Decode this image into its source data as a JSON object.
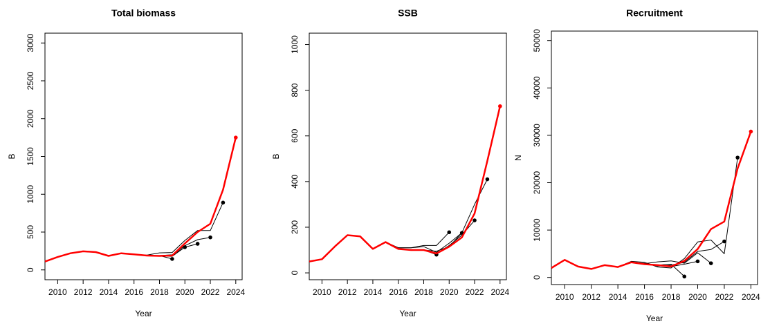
{
  "chart_data": [
    {
      "type": "line",
      "title": "Total biomass",
      "x_label": "Year",
      "y_label": "B",
      "x": [
        2009,
        2010,
        2011,
        2012,
        2013,
        2014,
        2015,
        2016,
        2017,
        2018,
        2019,
        2020,
        2021,
        2022,
        2023,
        2024
      ],
      "xlim": [
        2009,
        2024.5
      ],
      "xticks": [
        2010,
        2012,
        2014,
        2016,
        2018,
        2020,
        2022,
        2024
      ],
      "ylim": [
        -130,
        3130
      ],
      "yticks": [
        0,
        500,
        1000,
        1500,
        2000,
        2500,
        3000
      ],
      "series": [
        {
          "color": "#000000",
          "values": [
            110,
            170,
            220,
            245,
            235,
            185,
            220,
            205,
            190,
            190,
            145,
            null,
            null,
            null,
            null,
            null
          ]
        },
        {
          "color": "#000000",
          "values": [
            110,
            170,
            220,
            245,
            235,
            185,
            220,
            205,
            190,
            185,
            180,
            300,
            null,
            null,
            null,
            null
          ]
        },
        {
          "color": "#000000",
          "values": [
            110,
            170,
            220,
            245,
            235,
            185,
            220,
            205,
            190,
            185,
            195,
            300,
            345,
            null,
            null,
            null
          ]
        },
        {
          "color": "#000000",
          "values": [
            110,
            170,
            220,
            245,
            235,
            185,
            220,
            205,
            190,
            190,
            200,
            320,
            400,
            430,
            null,
            null
          ]
        },
        {
          "color": "#000000",
          "values": [
            110,
            170,
            220,
            245,
            235,
            185,
            220,
            205,
            195,
            225,
            230,
            390,
            520,
            520,
            890,
            null
          ]
        },
        {
          "color": "#ff0000",
          "values": [
            110,
            170,
            220,
            245,
            235,
            185,
            220,
            205,
            190,
            185,
            190,
            350,
            500,
            610,
            1060,
            1750
          ]
        }
      ]
    },
    {
      "type": "line",
      "title": "SSB",
      "x_label": "Year",
      "y_label": "B",
      "x": [
        2009,
        2010,
        2011,
        2012,
        2013,
        2014,
        2015,
        2016,
        2017,
        2018,
        2019,
        2020,
        2021,
        2022,
        2023,
        2024
      ],
      "xlim": [
        2009,
        2024.5
      ],
      "xticks": [
        2010,
        2012,
        2014,
        2016,
        2018,
        2020,
        2022,
        2024
      ],
      "ylim": [
        -30,
        1050
      ],
      "yticks": [
        0,
        200,
        400,
        600,
        800,
        1000
      ],
      "series": [
        {
          "color": "#000000",
          "values": [
            50,
            60,
            115,
            165,
            160,
            105,
            135,
            105,
            100,
            100,
            80,
            null,
            null,
            null,
            null,
            null
          ]
        },
        {
          "color": "#000000",
          "values": [
            50,
            60,
            115,
            165,
            160,
            105,
            135,
            110,
            110,
            120,
            120,
            178,
            null,
            null,
            null,
            null
          ]
        },
        {
          "color": "#000000",
          "values": [
            50,
            60,
            115,
            165,
            160,
            105,
            135,
            105,
            100,
            100,
            95,
            115,
            175,
            null,
            null,
            null
          ]
        },
        {
          "color": "#000000",
          "values": [
            50,
            60,
            115,
            165,
            160,
            105,
            135,
            105,
            100,
            100,
            85,
            120,
            165,
            230,
            null,
            null
          ]
        },
        {
          "color": "#000000",
          "values": [
            50,
            60,
            115,
            165,
            160,
            105,
            135,
            110,
            110,
            115,
            90,
            130,
            175,
            300,
            410,
            null
          ]
        },
        {
          "color": "#ff0000",
          "values": [
            50,
            60,
            115,
            165,
            160,
            105,
            135,
            105,
            100,
            100,
            85,
            115,
            155,
            260,
            490,
            730
          ]
        }
      ]
    },
    {
      "type": "line",
      "title": "Recruitment",
      "x_label": "Year",
      "y_label": "N",
      "x": [
        2009,
        2010,
        2011,
        2012,
        2013,
        2014,
        2015,
        2016,
        2017,
        2018,
        2019,
        2020,
        2021,
        2022,
        2023,
        2024
      ],
      "xlim": [
        2009,
        2024.5
      ],
      "xticks": [
        2010,
        2012,
        2014,
        2016,
        2018,
        2020,
        2022,
        2024
      ],
      "ylim": [
        -1500,
        52000
      ],
      "yticks": [
        0,
        10000,
        20000,
        30000,
        40000,
        50000
      ],
      "series": [
        {
          "color": "#000000",
          "values": [
            2000,
            3700,
            2300,
            1800,
            2600,
            2200,
            3200,
            2800,
            2600,
            2800,
            200,
            null,
            null,
            null,
            null,
            null
          ]
        },
        {
          "color": "#000000",
          "values": [
            2000,
            3700,
            2300,
            1800,
            2600,
            2200,
            3200,
            2800,
            2600,
            2300,
            2800,
            3400,
            null,
            null,
            null,
            null
          ]
        },
        {
          "color": "#000000",
          "values": [
            2000,
            3700,
            2300,
            1800,
            2600,
            2200,
            3200,
            2900,
            3300,
            3500,
            3000,
            5200,
            3000,
            null,
            null,
            null
          ]
        },
        {
          "color": "#000000",
          "values": [
            2000,
            3700,
            2300,
            1800,
            2600,
            2200,
            3200,
            3000,
            2400,
            2600,
            3200,
            5500,
            5900,
            7600,
            null,
            null
          ]
        },
        {
          "color": "#000000",
          "values": [
            2000,
            3700,
            2300,
            1800,
            2600,
            2200,
            3400,
            3200,
            2200,
            2000,
            4000,
            7500,
            7900,
            5000,
            25300,
            null
          ]
        },
        {
          "color": "#ff0000",
          "values": [
            2000,
            3700,
            2300,
            1800,
            2600,
            2200,
            3200,
            2800,
            2600,
            2300,
            3500,
            6000,
            10200,
            11800,
            23000,
            30800
          ]
        }
      ]
    }
  ]
}
